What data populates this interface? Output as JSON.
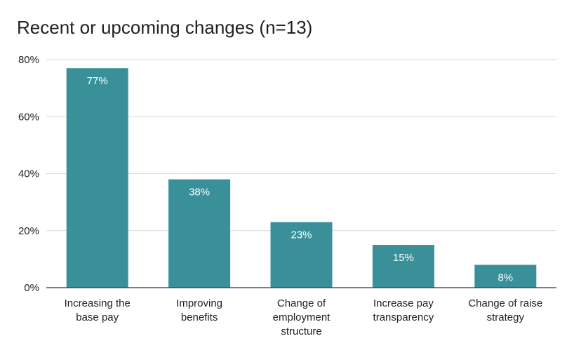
{
  "chart_data": {
    "type": "bar",
    "title": "Recent or upcoming changes (n=13)",
    "categories": [
      "Increasing the base pay",
      "Improving benefits",
      "Change of employment structure",
      "Increase pay transparency",
      "Change of raise strategy"
    ],
    "category_label_lines": [
      [
        "Increasing the",
        "base pay"
      ],
      [
        "Improving",
        "benefits"
      ],
      [
        "Change of",
        "employment",
        "structure"
      ],
      [
        "Increase pay",
        "transparency"
      ],
      [
        "Change of raise",
        "strategy"
      ]
    ],
    "values": [
      77,
      38,
      23,
      15,
      8
    ],
    "data_labels": [
      "77%",
      "38%",
      "23%",
      "15%",
      "8%"
    ],
    "ylim": [
      0,
      80
    ],
    "yticks": [
      0,
      20,
      40,
      60,
      80
    ],
    "ytick_labels": [
      "0%",
      "20%",
      "40%",
      "60%",
      "80%"
    ],
    "xlabel": "",
    "ylabel": "",
    "grid": true,
    "legend": "none",
    "bar_color": "#3a9099"
  }
}
